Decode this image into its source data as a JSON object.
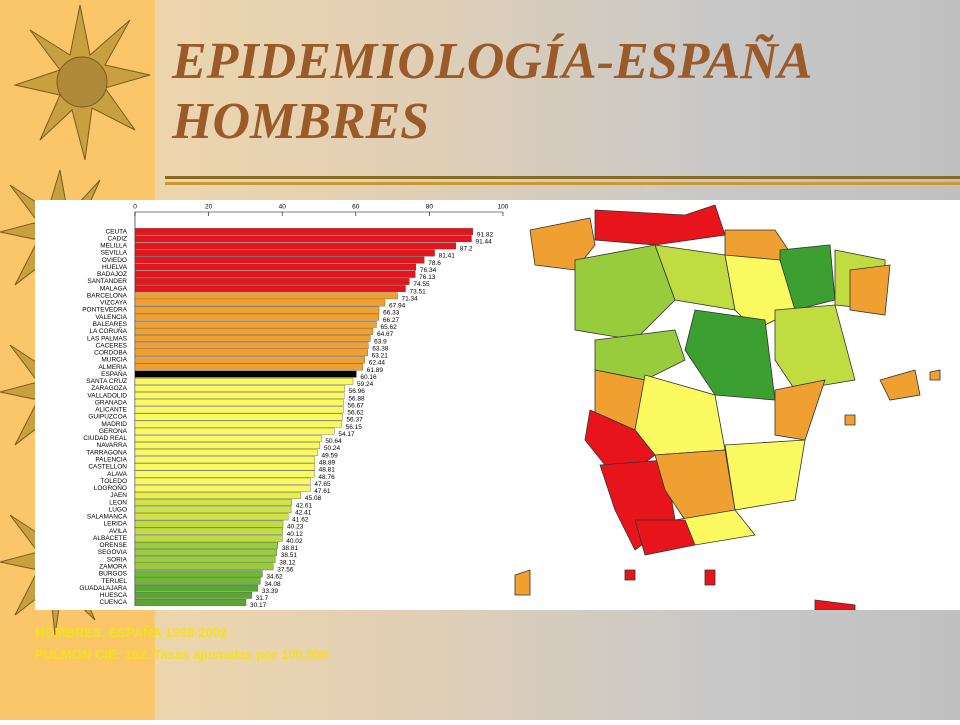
{
  "slide": {
    "title": [
      "EPIDEMIOLOGÍA-ESPAÑA",
      "HOMBRES"
    ],
    "footnote": [
      "HOMBRES. ESPAÑA 1998-2002",
      "PULMON CIE: 162. Tasas ajustadas por 100.000"
    ]
  },
  "chart_data": {
    "type": "bar",
    "orientation": "horizontal",
    "categories": [
      "CEUTA",
      "CADIZ",
      "MELILLA",
      "SEVILLA",
      "OVIEDO",
      "HUELVA",
      "BADAJOZ",
      "SANTANDER",
      "MALAGA",
      "BARCELONA",
      "VIZCAYA",
      "PONTEVEDRA",
      "VALENCIA",
      "BALEARES",
      "LA CORUÑA",
      "LAS PALMAS",
      "CACERES",
      "CORDOBA",
      "MURCIA",
      "ALMERIA",
      "ESPAÑA",
      "SANTA CRUZ",
      "ZARAGOZA",
      "VALLADOLID",
      "GRANADA",
      "ALICANTE",
      "GUIPUZCOA",
      "MADRID",
      "GERONA",
      "CIUDAD REAL",
      "NAVARRA",
      "TARRAGONA",
      "PALENCIA",
      "CASTELLON",
      "ALAVA",
      "TOLEDO",
      "LOGROÑO",
      "JAEN",
      "LEON",
      "LUGO",
      "SALAMANCA",
      "LERIDA",
      "AVILA",
      "ALBACETE",
      "ORENSE",
      "SEGOVIA",
      "SORIA",
      "ZAMORA",
      "BURGOS",
      "TERUEL",
      "GUADALAJARA",
      "HUESCA",
      "CUENCA"
    ],
    "values": [
      91.82,
      91.44,
      87.2,
      81.41,
      78.6,
      76.34,
      76.13,
      74.55,
      73.51,
      71.34,
      67.94,
      66.33,
      66.27,
      65.62,
      64.67,
      63.9,
      63.38,
      63.21,
      62.44,
      61.89,
      60.16,
      59.24,
      56.96,
      56.88,
      56.67,
      56.62,
      56.37,
      56.15,
      54.17,
      50.64,
      50.24,
      49.59,
      48.89,
      48.81,
      48.76,
      47.65,
      47.61,
      45.08,
      42.61,
      42.41,
      41.62,
      40.23,
      40.12,
      40.02,
      38.81,
      38.51,
      38.12,
      37.56,
      34.62,
      34.08,
      33.39,
      31.7,
      30.17
    ],
    "colors": [
      "#e8141b",
      "#e8141b",
      "#e8141b",
      "#e8141b",
      "#e8141b",
      "#e8141b",
      "#e8141b",
      "#e8141b",
      "#e8141b",
      "#f0a030",
      "#f0a030",
      "#f0a030",
      "#f0a030",
      "#f0a030",
      "#f0a030",
      "#f0a030",
      "#f0a030",
      "#f0a030",
      "#f0a030",
      "#f0a030",
      "#000000",
      "#fafa60",
      "#fafa60",
      "#fafa60",
      "#fafa60",
      "#fafa60",
      "#fafa60",
      "#fafa60",
      "#fafa60",
      "#fafa60",
      "#fafa60",
      "#fafa60",
      "#fafa60",
      "#fafa60",
      "#fafa60",
      "#fafa60",
      "#fafa60",
      "#e8f050",
      "#d0e448",
      "#d0e448",
      "#d0e448",
      "#c0dc40",
      "#c0dc40",
      "#c0dc40",
      "#98cc3c",
      "#98cc3c",
      "#98cc3c",
      "#98cc3c",
      "#70b834",
      "#70b834",
      "#58a830",
      "#58a830",
      "#58a830"
    ],
    "xlim": [
      0,
      100
    ],
    "xticks": [
      0,
      20,
      40,
      60,
      80,
      100
    ]
  }
}
